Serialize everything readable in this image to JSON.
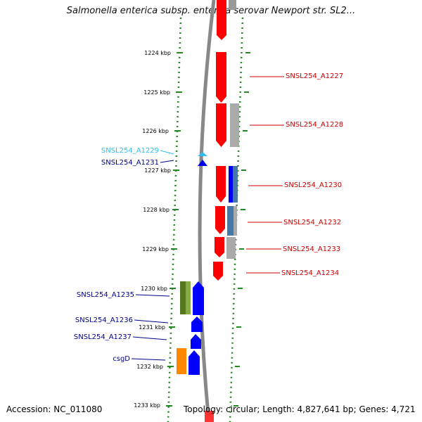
{
  "title": "Salmonella enterica subsp. enterica serovar Newport str. SL2...",
  "accession": "Accession: NC_011080",
  "stats": "Topology: circular; Length: 4,827,641 bp; Genes: 4,721",
  "ticks": [
    "1224 kbp",
    "1225 kbp",
    "1226 kbp",
    "1227 kbp",
    "1228 kbp",
    "1229 kbp",
    "1230 kbp",
    "1231 kbp",
    "1232 kbp",
    "1233 kbp"
  ],
  "colors": {
    "forward_gene": "#ff0000",
    "reverse_gene": "#0000ff",
    "forward_label": "#cc0000",
    "reverse_label": "#00008b",
    "highlight_label": "#33bbee",
    "gray_feature": "#aaaaaa",
    "blue_feature": "#4477aa",
    "green_feature": "#557722",
    "orange_feature": "#ff8800",
    "tick_green": "#228822",
    "backbone": "#888888"
  },
  "genes": [
    {
      "label": "SNSL254_A1227",
      "strand": "forward"
    },
    {
      "label": "SNSL254_A1228",
      "strand": "forward"
    },
    {
      "label": "SNSL254_A1229",
      "strand": "reverse",
      "highlight": true
    },
    {
      "label": "SNSL254_A1231",
      "strand": "reverse"
    },
    {
      "label": "SNSL254_A1230",
      "strand": "forward"
    },
    {
      "label": "SNSL254_A1232",
      "strand": "forward"
    },
    {
      "label": "SNSL254_A1233",
      "strand": "forward"
    },
    {
      "label": "SNSL254_A1234",
      "strand": "forward"
    },
    {
      "label": "SNSL254_A1235",
      "strand": "reverse"
    },
    {
      "label": "SNSL254_A1236",
      "strand": "reverse"
    },
    {
      "label": "SNSL254_A1237",
      "strand": "reverse"
    },
    {
      "label": "csgD",
      "strand": "reverse"
    }
  ]
}
